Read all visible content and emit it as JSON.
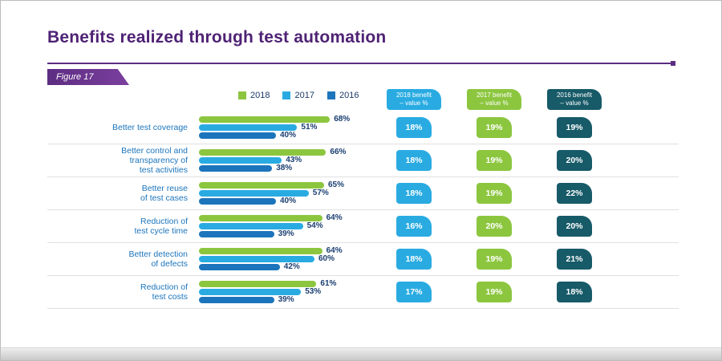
{
  "page": {
    "title": "Benefits realized through test automation",
    "figure_label": "Figure 17"
  },
  "legend": {
    "items": [
      {
        "label": "2018",
        "color": "#8cc63f"
      },
      {
        "label": "2017",
        "color": "#29abe2"
      },
      {
        "label": "2016",
        "color": "#1c75bc"
      }
    ]
  },
  "benefit_columns": [
    {
      "key": "2018",
      "title": "2018 benefit",
      "subtitle": "– value %",
      "color": "#29abe2",
      "values": [
        "18%",
        "18%",
        "18%",
        "16%",
        "18%",
        "17%"
      ]
    },
    {
      "key": "2017",
      "title": "2017 benefit",
      "subtitle": "– value %",
      "color": "#8cc63f",
      "values": [
        "19%",
        "19%",
        "19%",
        "20%",
        "19%",
        "19%"
      ]
    },
    {
      "key": "2016",
      "title": "2016 benefit",
      "subtitle": "– value %",
      "color": "#175a68",
      "values": [
        "19%",
        "20%",
        "22%",
        "20%",
        "21%",
        "18%"
      ]
    }
  ],
  "chart_data": {
    "type": "bar",
    "orientation": "horizontal",
    "title": "Benefits realized through test automation",
    "categories": [
      "Better test coverage",
      "Better control and transparency of test activities",
      "Better reuse of test cases",
      "Reduction of test cycle time",
      "Better detection of defects",
      "Reduction of test costs"
    ],
    "categories_display": [
      "Better test coverage",
      "Better control and\ntransparency of\ntest activities",
      "Better reuse\nof test cases",
      "Reduction of\ntest cycle time",
      "Better detection\nof defects",
      "Reduction of\ntest costs"
    ],
    "series": [
      {
        "name": "2018",
        "color": "#8cc63f",
        "values": [
          68,
          66,
          65,
          64,
          64,
          61
        ]
      },
      {
        "name": "2017",
        "color": "#29abe2",
        "values": [
          51,
          43,
          57,
          54,
          60,
          53
        ]
      },
      {
        "name": "2016",
        "color": "#1c75bc",
        "values": [
          40,
          38,
          40,
          39,
          42,
          39
        ]
      }
    ],
    "value_suffix": "%",
    "xlim": [
      0,
      100
    ],
    "grid": false,
    "legend_position": "top"
  }
}
